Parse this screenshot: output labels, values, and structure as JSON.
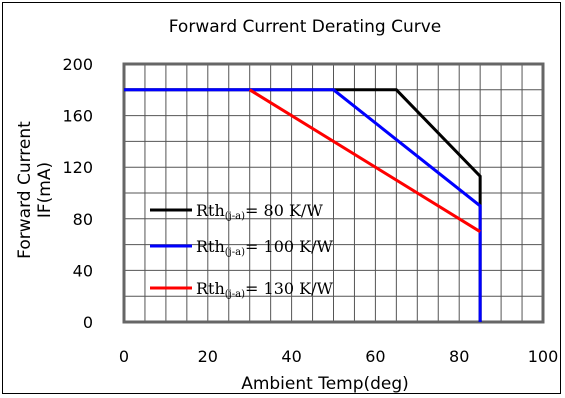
{
  "chart_data": {
    "type": "line",
    "title": "Forward Current Derating Curve",
    "xlabel": "Ambient Temp(deg)",
    "ylabel_line1": "Forward Current",
    "ylabel_line2": "IF(mA)",
    "xlim": [
      0,
      100
    ],
    "ylim": [
      0,
      200
    ],
    "x_ticks": [
      0,
      20,
      40,
      60,
      80,
      100
    ],
    "y_ticks": [
      0,
      40,
      80,
      120,
      160,
      200
    ],
    "grid": true,
    "legend_position": "lower-left",
    "series": [
      {
        "name": "Rth(j-a)= 80 K/W",
        "legend_prefix": "Rth",
        "legend_sub": "(j-a)",
        "legend_suffix": "= 80 K/W",
        "color": "#000000",
        "x": [
          0,
          65,
          85,
          85
        ],
        "y": [
          180,
          180,
          113,
          0
        ]
      },
      {
        "name": "Rth(j-a)= 100 K/W",
        "legend_prefix": "Rth",
        "legend_sub": "(j-a)",
        "legend_suffix": "= 100 K/W",
        "color": "#0000ff",
        "x": [
          0,
          50,
          85,
          85
        ],
        "y": [
          180,
          180,
          90,
          0
        ]
      },
      {
        "name": "Rth(j-a)= 130 K/W",
        "legend_prefix": "Rth",
        "legend_sub": "(j-a)",
        "legend_suffix": "= 130 K/W",
        "color": "#ff0000",
        "x": [
          30,
          85
        ],
        "y": [
          180,
          70
        ]
      }
    ]
  }
}
